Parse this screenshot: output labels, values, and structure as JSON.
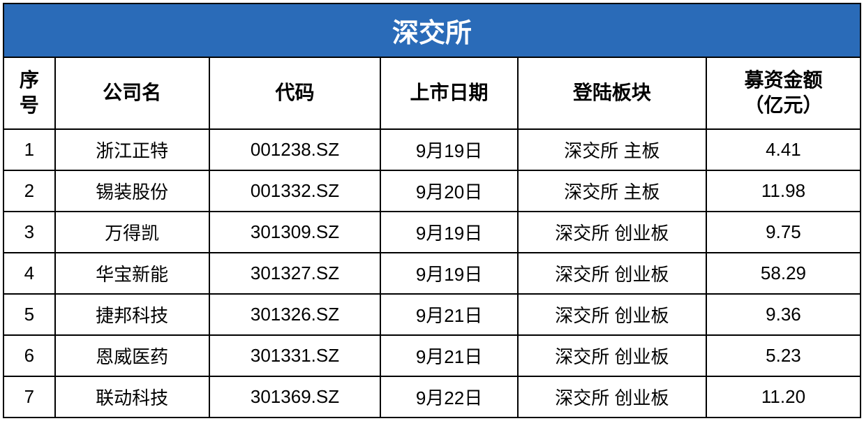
{
  "table": {
    "title": "深交所",
    "title_bg_color": "#2a6bb8",
    "title_text_color": "#ffffff",
    "border_color": "#000000",
    "cell_bg_color": "#ffffff",
    "text_color": "#000000",
    "title_fontsize": 38,
    "header_fontsize": 28,
    "cell_fontsize": 26,
    "columns": [
      {
        "key": "seq",
        "label": "序号",
        "width": "6%"
      },
      {
        "key": "company",
        "label": "公司名",
        "width": "18%"
      },
      {
        "key": "code",
        "label": "代码",
        "width": "20%"
      },
      {
        "key": "date",
        "label": "上市日期",
        "width": "16%"
      },
      {
        "key": "board",
        "label": "登陆板块",
        "width": "22%"
      },
      {
        "key": "amount",
        "label": "募资金额\n（亿元）",
        "width": "18%"
      }
    ],
    "rows": [
      {
        "seq": "1",
        "company": "浙江正特",
        "code": "001238.SZ",
        "date": "9月19日",
        "board": "深交所 主板",
        "amount": "4.41"
      },
      {
        "seq": "2",
        "company": "锡装股份",
        "code": "001332.SZ",
        "date": "9月20日",
        "board": "深交所 主板",
        "amount": "11.98"
      },
      {
        "seq": "3",
        "company": "万得凯",
        "code": "301309.SZ",
        "date": "9月19日",
        "board": "深交所 创业板",
        "amount": "9.75"
      },
      {
        "seq": "4",
        "company": "华宝新能",
        "code": "301327.SZ",
        "date": "9月19日",
        "board": "深交所 创业板",
        "amount": "58.29"
      },
      {
        "seq": "5",
        "company": "捷邦科技",
        "code": "301326.SZ",
        "date": "9月21日",
        "board": "深交所 创业板",
        "amount": "9.36"
      },
      {
        "seq": "6",
        "company": "恩威医药",
        "code": "301331.SZ",
        "date": "9月21日",
        "board": "深交所 创业板",
        "amount": "5.23"
      },
      {
        "seq": "7",
        "company": "联动科技",
        "code": "301369.SZ",
        "date": "9月22日",
        "board": "深交所 创业板",
        "amount": "11.20"
      }
    ]
  }
}
